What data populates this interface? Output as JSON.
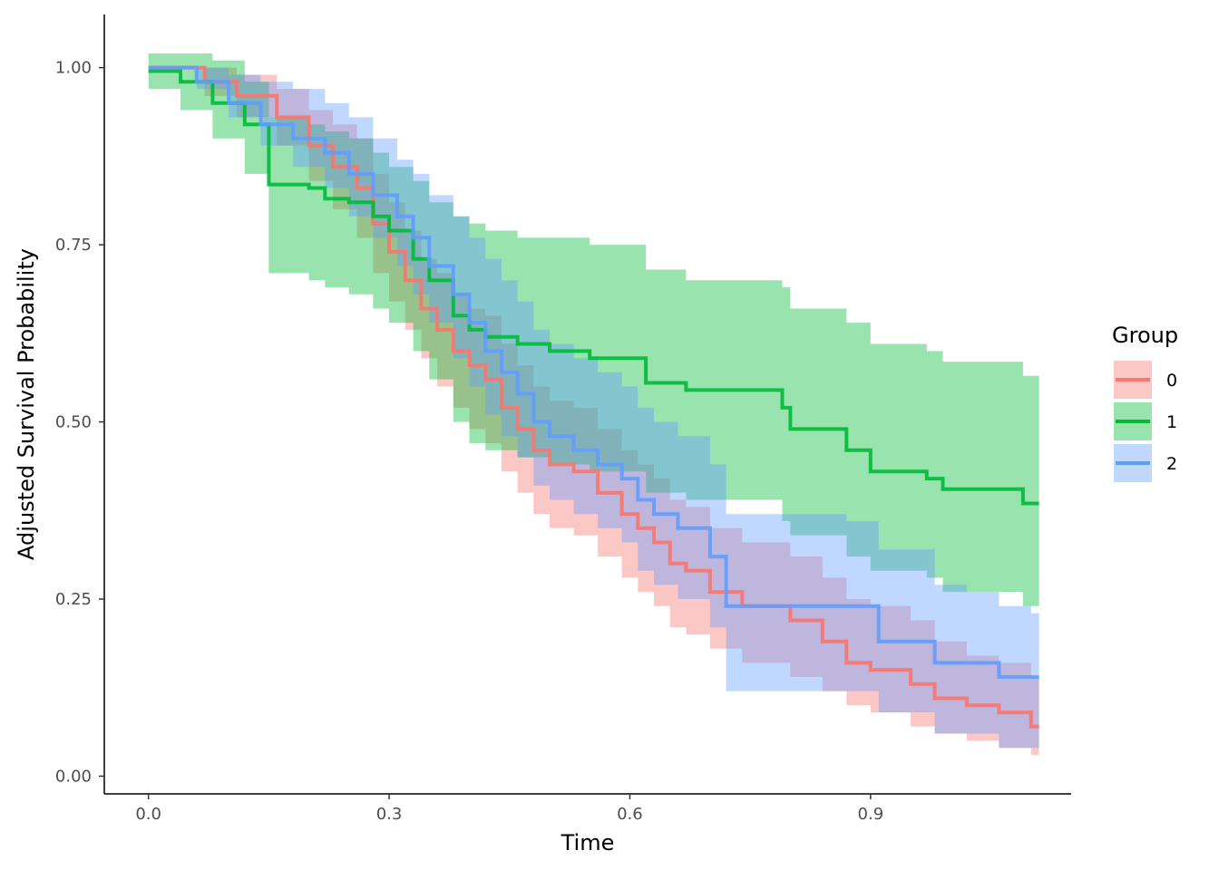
{
  "chart_data": {
    "type": "line",
    "subtype": "step",
    "xlabel": "Time",
    "ylabel": "Adjusted Survival Probability",
    "xlim": [
      -0.055,
      1.15
    ],
    "ylim": [
      -0.025,
      1.075
    ],
    "x_ticks": [
      0.0,
      0.3,
      0.6,
      0.9
    ],
    "x_tick_labels": [
      "0.0",
      "0.3",
      "0.6",
      "0.9"
    ],
    "y_ticks": [
      0.0,
      0.25,
      0.5,
      0.75,
      1.0
    ],
    "y_tick_labels": [
      "0.00",
      "0.25",
      "0.50",
      "0.75",
      "1.00"
    ],
    "grid": false,
    "legend": {
      "title": "Group",
      "position": "right"
    },
    "series": [
      {
        "name": "0",
        "color": "#F8766D",
        "x": [
          0.0,
          0.07,
          0.11,
          0.16,
          0.2,
          0.23,
          0.26,
          0.28,
          0.3,
          0.32,
          0.34,
          0.36,
          0.38,
          0.4,
          0.42,
          0.44,
          0.46,
          0.48,
          0.5,
          0.53,
          0.56,
          0.59,
          0.61,
          0.63,
          0.65,
          0.67,
          0.7,
          0.74,
          0.8,
          0.84,
          0.87,
          0.9,
          0.95,
          0.98,
          1.02,
          1.06,
          1.1
        ],
        "y": [
          1.0,
          0.98,
          0.96,
          0.93,
          0.89,
          0.86,
          0.83,
          0.78,
          0.74,
          0.7,
          0.66,
          0.63,
          0.6,
          0.58,
          0.56,
          0.52,
          0.49,
          0.46,
          0.44,
          0.43,
          0.4,
          0.37,
          0.35,
          0.33,
          0.3,
          0.29,
          0.26,
          0.24,
          0.22,
          0.19,
          0.16,
          0.15,
          0.13,
          0.11,
          0.1,
          0.09,
          0.07
        ],
        "lower": [
          1.0,
          0.96,
          0.93,
          0.89,
          0.84,
          0.8,
          0.76,
          0.71,
          0.67,
          0.63,
          0.59,
          0.55,
          0.52,
          0.49,
          0.47,
          0.43,
          0.4,
          0.37,
          0.35,
          0.34,
          0.31,
          0.28,
          0.26,
          0.24,
          0.21,
          0.2,
          0.18,
          0.16,
          0.14,
          0.12,
          0.1,
          0.09,
          0.07,
          0.06,
          0.05,
          0.04,
          0.03
        ],
        "upper": [
          1.0,
          1.0,
          0.99,
          0.97,
          0.94,
          0.92,
          0.9,
          0.85,
          0.81,
          0.77,
          0.73,
          0.71,
          0.68,
          0.66,
          0.65,
          0.61,
          0.58,
          0.55,
          0.53,
          0.52,
          0.49,
          0.46,
          0.44,
          0.42,
          0.39,
          0.38,
          0.35,
          0.33,
          0.31,
          0.28,
          0.25,
          0.24,
          0.22,
          0.19,
          0.17,
          0.16,
          0.14
        ]
      },
      {
        "name": "1",
        "color": "#00BA38",
        "x": [
          0.0,
          0.04,
          0.08,
          0.12,
          0.15,
          0.2,
          0.22,
          0.25,
          0.28,
          0.3,
          0.33,
          0.35,
          0.38,
          0.4,
          0.42,
          0.46,
          0.5,
          0.55,
          0.62,
          0.67,
          0.79,
          0.8,
          0.87,
          0.9,
          0.97,
          0.99,
          1.09
        ],
        "y": [
          0.995,
          0.98,
          0.95,
          0.92,
          0.835,
          0.83,
          0.815,
          0.81,
          0.79,
          0.77,
          0.73,
          0.7,
          0.65,
          0.63,
          0.62,
          0.61,
          0.6,
          0.59,
          0.555,
          0.545,
          0.52,
          0.49,
          0.46,
          0.43,
          0.42,
          0.405,
          0.385
        ],
        "lower": [
          0.97,
          0.94,
          0.9,
          0.85,
          0.71,
          0.7,
          0.69,
          0.68,
          0.66,
          0.64,
          0.6,
          0.56,
          0.5,
          0.47,
          0.46,
          0.45,
          0.44,
          0.43,
          0.4,
          0.39,
          0.36,
          0.34,
          0.31,
          0.29,
          0.28,
          0.26,
          0.24
        ],
        "upper": [
          1.02,
          1.02,
          1.01,
          0.98,
          0.93,
          0.92,
          0.91,
          0.9,
          0.88,
          0.86,
          0.84,
          0.81,
          0.79,
          0.78,
          0.77,
          0.76,
          0.76,
          0.75,
          0.715,
          0.7,
          0.69,
          0.66,
          0.64,
          0.61,
          0.6,
          0.585,
          0.565
        ]
      },
      {
        "name": "2",
        "color": "#619CFF",
        "x": [
          0.0,
          0.06,
          0.1,
          0.14,
          0.18,
          0.22,
          0.25,
          0.28,
          0.31,
          0.33,
          0.35,
          0.38,
          0.4,
          0.42,
          0.44,
          0.46,
          0.48,
          0.5,
          0.53,
          0.56,
          0.59,
          0.61,
          0.63,
          0.66,
          0.7,
          0.72,
          0.8,
          0.87,
          0.91,
          0.98,
          1.02,
          1.06,
          1.1
        ],
        "y": [
          1.0,
          0.98,
          0.95,
          0.92,
          0.9,
          0.88,
          0.85,
          0.82,
          0.79,
          0.76,
          0.72,
          0.68,
          0.64,
          0.6,
          0.57,
          0.54,
          0.5,
          0.48,
          0.46,
          0.44,
          0.42,
          0.39,
          0.37,
          0.35,
          0.31,
          0.24,
          0.24,
          0.24,
          0.19,
          0.16,
          0.16,
          0.14,
          0.14
        ],
        "lower": [
          1.0,
          0.97,
          0.93,
          0.89,
          0.86,
          0.83,
          0.79,
          0.76,
          0.72,
          0.68,
          0.64,
          0.59,
          0.55,
          0.51,
          0.48,
          0.45,
          0.41,
          0.39,
          0.37,
          0.35,
          0.33,
          0.29,
          0.27,
          0.25,
          0.21,
          0.12,
          0.12,
          0.12,
          0.09,
          0.06,
          0.06,
          0.04,
          0.04
        ],
        "upper": [
          1.0,
          1.0,
          0.99,
          0.98,
          0.97,
          0.95,
          0.93,
          0.9,
          0.87,
          0.85,
          0.82,
          0.79,
          0.76,
          0.73,
          0.7,
          0.67,
          0.63,
          0.61,
          0.59,
          0.57,
          0.55,
          0.52,
          0.5,
          0.48,
          0.44,
          0.37,
          0.37,
          0.36,
          0.32,
          0.27,
          0.26,
          0.24,
          0.23
        ]
      }
    ]
  }
}
